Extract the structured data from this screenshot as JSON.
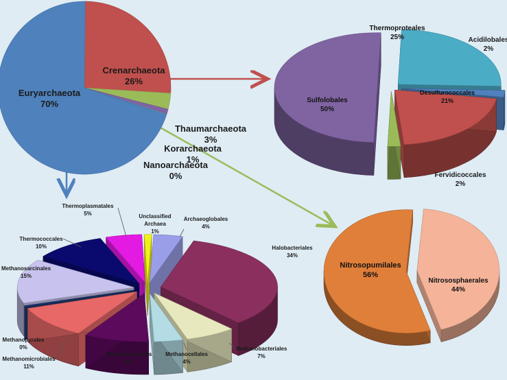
{
  "colors": {
    "background": "#dfecf4",
    "arrow_red": "#c0504d",
    "arrow_green": "#9bbb59",
    "arrow_blue": "#4f81bd"
  },
  "chart_data": [
    {
      "id": "phyla",
      "type": "pie",
      "slices": [
        {
          "label": "Euryarchaeota",
          "value": 70,
          "pct": "70%",
          "color": "#4f81bd"
        },
        {
          "label": "Crenarchaeota",
          "value": 26,
          "pct": "26%",
          "color": "#c0504d"
        },
        {
          "label": "Thaumarchaeota",
          "value": 3,
          "pct": "3%",
          "color": "#9bbb59"
        },
        {
          "label": "Korarchaeota",
          "value": 1,
          "pct": "1%",
          "color": "#8064a2"
        },
        {
          "label": "Nanoarchaeota",
          "value": 0,
          "pct": "0%",
          "color": "#4bacc6"
        }
      ]
    },
    {
      "id": "crenarchaeota_orders",
      "type": "pie",
      "style": "exploded-3d",
      "slices": [
        {
          "label": "Sulfolobales",
          "value": 50,
          "pct": "50%",
          "color": "#8064a2"
        },
        {
          "label": "Thermoproteales",
          "value": 25,
          "pct": "25%",
          "color": "#4bacc6"
        },
        {
          "label": "Acidilobales",
          "value": 2,
          "pct": "2%",
          "color": "#4f81bd"
        },
        {
          "label": "Desulfurococcales",
          "value": 21,
          "pct": "21%",
          "color": "#c0504d"
        },
        {
          "label": "Fervidicoccales",
          "value": 2,
          "pct": "2%",
          "color": "#9bbb59"
        }
      ]
    },
    {
      "id": "thaumarchaeota_orders",
      "type": "pie",
      "style": "exploded-3d",
      "slices": [
        {
          "label": "Nitrosopumilales",
          "value": 56,
          "pct": "56%",
          "color": "#e07f3a"
        },
        {
          "label": "Nitrososphaerales",
          "value": 44,
          "pct": "44%",
          "color": "#f5b49a"
        }
      ]
    },
    {
      "id": "euryarchaeota_orders",
      "type": "pie",
      "style": "exploded-3d",
      "slices": [
        {
          "label": "Archaeoglobales",
          "value": 4,
          "pct": "4%",
          "color": "#9a9ee8"
        },
        {
          "label": "Halobacteriales",
          "value": 34,
          "pct": "34%",
          "color": "#8b2f5f"
        },
        {
          "label": "Methanobacteriales",
          "value": 7,
          "pct": "7%",
          "color": "#e8e8be"
        },
        {
          "label": "Methanocellales",
          "value": 4,
          "pct": "4%",
          "color": "#b3dce4"
        },
        {
          "label": "Methanococcales",
          "value": 9,
          "pct": "9%",
          "color": "#5c0a5c"
        },
        {
          "label": "Methanomicrobiales",
          "value": 11,
          "pct": "11%",
          "color": "#e86868"
        },
        {
          "label": "Methanopyrales",
          "value": 0,
          "pct": "0%",
          "color": "#1f3a73"
        },
        {
          "label": "Methanosarcinales",
          "value": 15,
          "pct": "15%",
          "color": "#c7c3ee"
        },
        {
          "label": "Thermococcales",
          "value": 10,
          "pct": "10%",
          "color": "#0a0a6e"
        },
        {
          "label": "Thermoplasmatales",
          "value": 5,
          "pct": "5%",
          "color": "#e21ae2"
        },
        {
          "label": "Unclassified Archaea",
          "value": 1,
          "pct": "1%",
          "color": "#f2f21a"
        }
      ]
    }
  ]
}
